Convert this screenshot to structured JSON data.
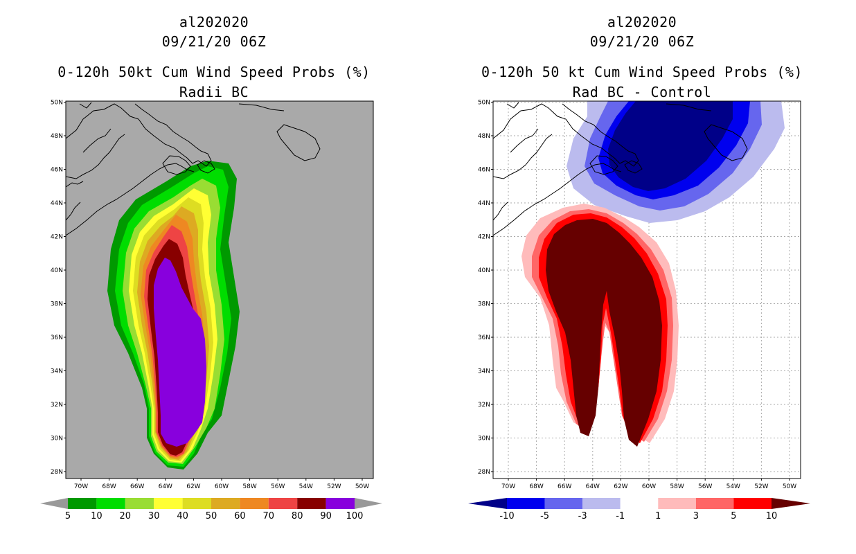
{
  "left_panel": {
    "storm_id": "al202020",
    "datetime": "09/21/20 06Z",
    "title": "0-120h 50kt Cum Wind Speed Probs (%)",
    "subtitle": "Radii BC",
    "colorbar": {
      "labels": [
        "5",
        "10",
        "20",
        "30",
        "40",
        "50",
        "60",
        "70",
        "80",
        "90",
        "100"
      ],
      "colors": [
        "#009900",
        "#00dd00",
        "#99dd33",
        "#ffff33",
        "#dddd22",
        "#ddaa22",
        "#ee8822",
        "#ee4444",
        "#880000",
        "#8800dd"
      ],
      "under_color": "#999999",
      "over_color": "#999999"
    },
    "background_color": "#a9a9a9"
  },
  "right_panel": {
    "storm_id": "al202020",
    "datetime": "09/21/20 06Z",
    "title": "0-120h 50 kt Cum Wind Speed Probs (%)",
    "subtitle": "Rad BC - Control",
    "colorbar": {
      "labels": [
        "-10",
        "-5",
        "-3",
        "-1",
        "1",
        "3",
        "5",
        "10"
      ],
      "colors": [
        "#0000ee",
        "#6666ee",
        "#bbbbee",
        "#ffffff",
        "#ffbbbb",
        "#ff6666",
        "#ff0000"
      ],
      "under_color": "#000088",
      "over_color": "#660000"
    },
    "background_color": "#ffffff"
  },
  "axes": {
    "lat_labels": [
      "28N",
      "30N",
      "32N",
      "34N",
      "36N",
      "38N",
      "40N",
      "42N",
      "44N",
      "46N",
      "48N",
      "50N"
    ],
    "lon_labels": [
      "70W",
      "68W",
      "66W",
      "64W",
      "62W",
      "60W",
      "58W",
      "56W",
      "54W",
      "52W",
      "50W"
    ]
  }
}
